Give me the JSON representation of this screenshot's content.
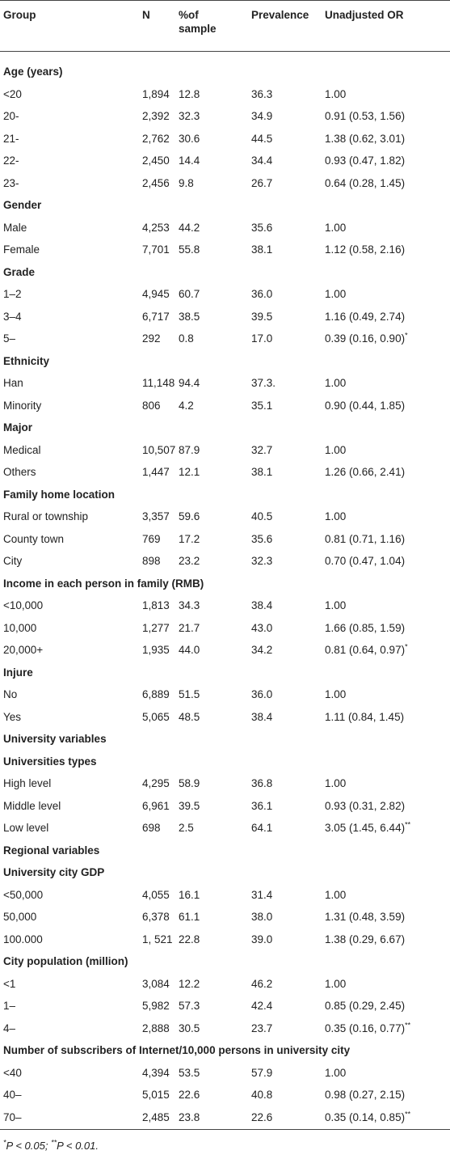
{
  "table": {
    "header": [
      "Group",
      "N",
      "%of sample",
      "Prevalence",
      "Unadjusted OR"
    ],
    "rows": [
      {
        "cells": [
          "Age (years)"
        ]
      },
      {
        "cells": [
          "<20",
          "1,894",
          "12.8",
          "36.3",
          "1.00"
        ]
      },
      {
        "cells": [
          "20-",
          "2,392",
          "32.3",
          "34.9",
          "0.91 (0.53, 1.56)"
        ]
      },
      {
        "cells": [
          "21-",
          "2,762",
          "30.6",
          "44.5",
          "1.38 (0.62, 3.01)"
        ]
      },
      {
        "cells": [
          "22-",
          "2,450",
          "14.4",
          "34.4",
          "0.93 (0.47, 1.82)"
        ]
      },
      {
        "cells": [
          "23-",
          "2,456",
          "9.8",
          "26.7",
          "0.64 (0.28, 1.45)"
        ]
      },
      {
        "cells": [
          "Gender"
        ]
      },
      {
        "cells": [
          "Male",
          "4,253",
          "44.2",
          "35.6",
          "1.00"
        ]
      },
      {
        "cells": [
          "Female",
          "7,701",
          "55.8",
          "38.1",
          "1.12 (0.58, 2.16)"
        ]
      },
      {
        "cells": [
          "Grade"
        ]
      },
      {
        "cells": [
          "1–2",
          "4,945",
          "60.7",
          "36.0",
          "1.00"
        ]
      },
      {
        "cells": [
          "3–4",
          "6,717",
          "38.5",
          "39.5",
          "1.16 (0.49, 2.74)"
        ]
      },
      {
        "cells": [
          "5–",
          "292",
          "0.8",
          "17.0",
          "0.39 (0.16, 0.90)"
        ],
        "mark": "*"
      },
      {
        "cells": [
          "Ethnicity"
        ]
      },
      {
        "cells": [
          "Han",
          "11,148",
          "94.4",
          "37.3.",
          "1.00"
        ]
      },
      {
        "cells": [
          "Minority",
          "806",
          "4.2",
          "35.1",
          "0.90 (0.44, 1.85)"
        ]
      },
      {
        "cells": [
          "Major"
        ]
      },
      {
        "cells": [
          "Medical",
          "10,507",
          "87.9",
          "32.7",
          "1.00"
        ]
      },
      {
        "cells": [
          "Others",
          "1,447",
          "12.1",
          "38.1",
          "1.26 (0.66, 2.41)"
        ]
      },
      {
        "cells": [
          "Family home location"
        ]
      },
      {
        "cells": [
          "Rural or township",
          "3,357",
          "59.6",
          "40.5",
          "1.00"
        ]
      },
      {
        "cells": [
          "County town",
          "769",
          "17.2",
          "35.6",
          "0.81 (0.71, 1.16)"
        ]
      },
      {
        "cells": [
          "City",
          "898",
          "23.2",
          "32.3",
          "0.70 (0.47, 1.04)"
        ]
      },
      {
        "cells": [
          "Income in each person in family (RMB)"
        ]
      },
      {
        "cells": [
          "<10,000",
          "1,813",
          "34.3",
          "38.4",
          "1.00"
        ]
      },
      {
        "cells": [
          "10,000",
          "1,277",
          "21.7",
          "43.0",
          "1.66 (0.85, 1.59)"
        ]
      },
      {
        "cells": [
          "20,000+",
          "1,935",
          "44.0",
          "34.2",
          "0.81 (0.64, 0.97)"
        ],
        "mark": "*"
      },
      {
        "cells": [
          "Injure"
        ]
      },
      {
        "cells": [
          "No",
          "6,889",
          "51.5",
          "36.0",
          "1.00"
        ]
      },
      {
        "cells": [
          "Yes",
          "5,065",
          "48.5",
          "38.4",
          "1.11 (0.84, 1.45)"
        ]
      },
      {
        "cells": [
          "University variables"
        ]
      },
      {
        "cells": [
          "Universities types"
        ]
      },
      {
        "cells": [
          "High level",
          "4,295",
          "58.9",
          "36.8",
          "1.00"
        ]
      },
      {
        "cells": [
          "Middle level",
          "6,961",
          "39.5",
          "36.1",
          "0.93 (0.31, 2.82)"
        ]
      },
      {
        "cells": [
          "Low level",
          "698",
          "2.5",
          "64.1",
          "3.05 (1.45, 6.44)"
        ],
        "mark": "**"
      },
      {
        "cells": [
          "Regional variables"
        ]
      },
      {
        "cells": [
          "University city GDP"
        ]
      },
      {
        "cells": [
          "<50,000",
          "4,055",
          "16.1",
          "31.4",
          "1.00"
        ]
      },
      {
        "cells": [
          "50,000",
          "6,378",
          "61.1",
          "38.0",
          "1.31 (0.48, 3.59)"
        ]
      },
      {
        "cells": [
          "100.000",
          "1, 521",
          "22.8",
          "39.0",
          "1.38 (0.29, 6.67)"
        ]
      },
      {
        "cells": [
          "City population (million)"
        ]
      },
      {
        "cells": [
          "<1",
          "3,084",
          "12.2",
          "46.2",
          "1.00"
        ]
      },
      {
        "cells": [
          "1–",
          "5,982",
          "57.3",
          "42.4",
          "0.85 (0.29, 2.45)"
        ]
      },
      {
        "cells": [
          "4–",
          "2,888",
          "30.5",
          "23.7",
          "0.35 (0.16, 0.77)"
        ],
        "mark": "**"
      },
      {
        "cells": [
          "Number of subscribers of Internet/10,000 persons in university city"
        ]
      },
      {
        "cells": [
          "<40",
          "4,394",
          "53.5",
          "57.9",
          "1.00"
        ]
      },
      {
        "cells": [
          "40–",
          "5,015",
          "22.6",
          "40.8",
          "0.98 (0.27, 2.15)"
        ]
      },
      {
        "cells": [
          "70–",
          "2,485",
          "23.8",
          "22.6",
          "0.35 (0.14, 0.85)"
        ],
        "mark": "**"
      }
    ],
    "footnote": [
      {
        "mark": "*",
        "text": "P < 0.05;"
      },
      {
        "mark": "**",
        "text": "P < 0.01."
      }
    ]
  }
}
